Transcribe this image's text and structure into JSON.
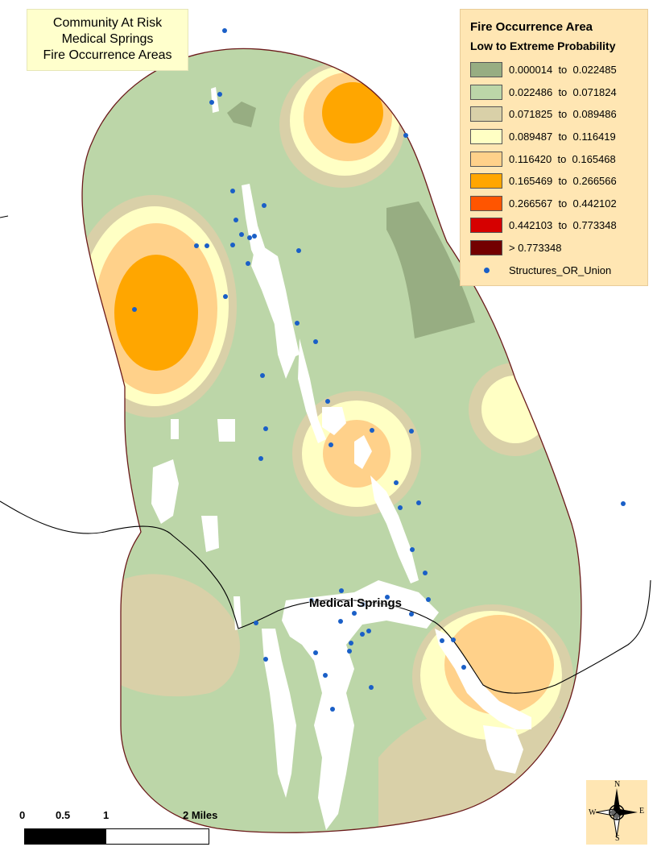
{
  "map_title": {
    "line1": "Community At Risk",
    "line2": "Medical Springs",
    "line3": "Fire Occurrence Areas"
  },
  "legend": {
    "title": "Fire Occurrence Area",
    "subtitle": "Low to Extreme Probability",
    "classes": [
      {
        "label": "0.000014  to  0.022485",
        "color": "#97ad82"
      },
      {
        "label": "0.022486  to  0.071824",
        "color": "#bcd6a8"
      },
      {
        "label": "0.071825  to  0.089486",
        "color": "#d9d0a8"
      },
      {
        "label": "0.089487  to  0.116419",
        "color": "#ffffc4"
      },
      {
        "label": "0.116420  to  0.165468",
        "color": "#ffd18a"
      },
      {
        "label": "0.165469  to  0.266566",
        "color": "#ffa600"
      },
      {
        "label": "0.266567  to  0.442102",
        "color": "#ff5500"
      },
      {
        "label": "0.442103  to  0.773348",
        "color": "#d60000"
      },
      {
        "label": "> 0.773348",
        "color": "#730000"
      }
    ],
    "points_label": "Structures_OR_Union",
    "points_color": "#1a5fc7"
  },
  "place_label": "Medical Springs",
  "scale_bar": {
    "labels": [
      "0",
      "0.5",
      "1",
      "2 Miles"
    ]
  },
  "north_arrow": {
    "n": "N",
    "s": "S",
    "e": "E",
    "w": "W"
  }
}
